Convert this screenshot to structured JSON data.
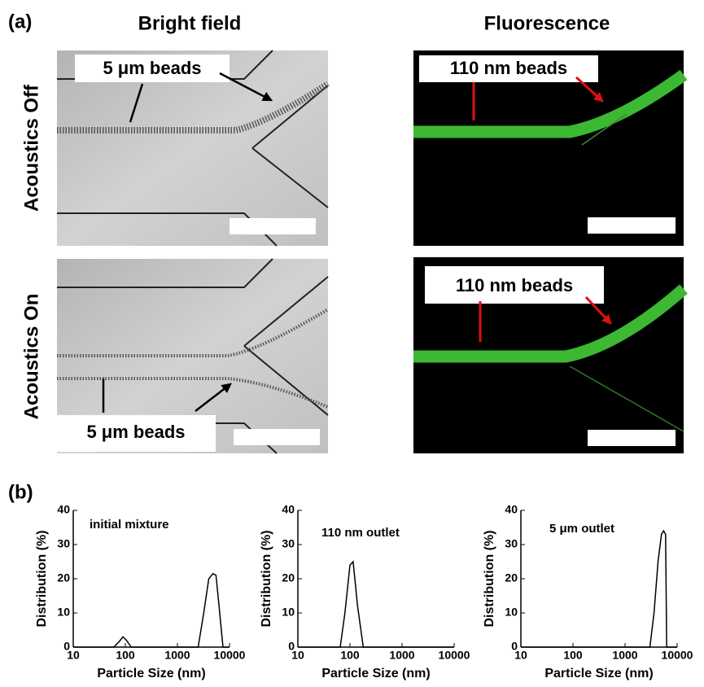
{
  "figure": {
    "panel_a": {
      "label": "(a)",
      "columns": [
        "Bright field",
        "Fluorescence"
      ],
      "rows": [
        "Acoustics Off",
        "Acoustics On"
      ],
      "annotations": [
        "5 μm beads",
        "110 nm beads",
        "5 μm beads",
        "110 nm beads"
      ]
    },
    "panel_b": {
      "label": "(b)"
    }
  },
  "chart_data": [
    {
      "type": "line",
      "title": "initial mixture",
      "x_label": "Particle Size (nm)",
      "y_label": "Distribution (%)",
      "xscale": "log",
      "xlim": [
        10,
        10000
      ],
      "ylim": [
        0,
        40
      ],
      "xticks": [
        10,
        100,
        1000,
        10000
      ],
      "yticks": [
        0,
        10,
        20,
        30,
        40
      ],
      "color": "#000000",
      "x": [
        10,
        60,
        75,
        90,
        105,
        130,
        2000,
        2500,
        3200,
        4000,
        4800,
        5500,
        6300,
        7500,
        10000
      ],
      "values": [
        0,
        0,
        1.5,
        3,
        2,
        0,
        0,
        0,
        10,
        20,
        21.5,
        21,
        12,
        0,
        0
      ]
    },
    {
      "type": "line",
      "title": "110 nm outlet",
      "x_label": "Particle Size (nm)",
      "y_label": "Distribution (%)",
      "xscale": "log",
      "xlim": [
        10,
        10000
      ],
      "ylim": [
        0,
        40
      ],
      "xticks": [
        10,
        100,
        1000,
        10000
      ],
      "yticks": [
        0,
        10,
        20,
        30,
        40
      ],
      "color": "#000000",
      "x": [
        10,
        65,
        80,
        100,
        115,
        140,
        180,
        10000
      ],
      "values": [
        0,
        0,
        10,
        24,
        25,
        12,
        0,
        0
      ]
    },
    {
      "type": "line",
      "title": "5 μm outlet",
      "x_label": "Particle Size (nm)",
      "y_label": "Distribution (%)",
      "xscale": "log",
      "xlim": [
        10,
        10000
      ],
      "ylim": [
        0,
        40
      ],
      "xticks": [
        10,
        100,
        1000,
        10000
      ],
      "yticks": [
        0,
        10,
        20,
        30,
        40
      ],
      "color": "#000000",
      "x": [
        10,
        3000,
        3600,
        4300,
        5000,
        5500,
        6000,
        6300,
        10000
      ],
      "values": [
        0,
        0,
        10,
        25,
        33,
        34,
        33,
        0,
        0
      ]
    }
  ]
}
